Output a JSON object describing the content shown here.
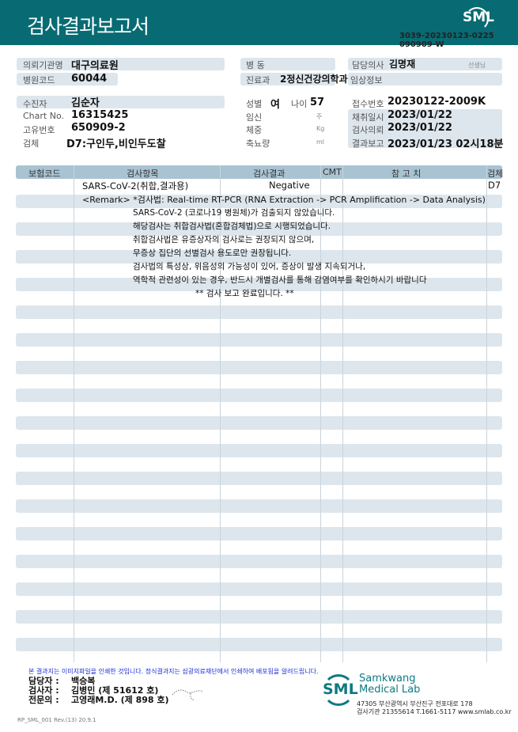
{
  "header": {
    "title": "검사결과보고서",
    "logo": "SML",
    "doc_number_line1": "3039-20230123-0225",
    "doc_number_line2": "090909-W"
  },
  "info": {
    "institution_label": "의뢰기관명",
    "institution": "대구의료원",
    "ward_label": "병 동",
    "ward": "",
    "doctor_label": "담당의사",
    "doctor": "김명재",
    "doctor_suffix": "선생님",
    "hospital_code_label": "병원코드",
    "hospital_code": "60044",
    "department_label": "진료과",
    "department": "2정신건강의학과",
    "clinical_info_label": "임상정보",
    "patient_label": "수진자",
    "patient": "김순자",
    "chart_label": "Chart No.",
    "chart": "16315425",
    "id_label": "고유번호",
    "id": "650909-2",
    "specimen_label": "검체",
    "specimen": "D7:구인두,비인두도찰",
    "sex_label": "성별",
    "sex": "여",
    "age_label": "나이",
    "age": "57",
    "pregnancy_label": "임신",
    "pregnancy_unit": "주",
    "weight_label": "체중",
    "weight_unit": "Kg",
    "urine_label": "축뇨량",
    "urine_unit": "ml",
    "receipt_label": "접수번호",
    "receipt": "20230122-2009K",
    "collected_label": "채취일시",
    "collected": "2023/01/22",
    "requested_label": "검사의뢰",
    "requested": "2023/01/22",
    "reported_label": "결과보고",
    "reported": "2023/01/23 02시18분"
  },
  "table": {
    "headers": [
      "보험코드",
      "검사항목",
      "검사결과",
      "CMT",
      "참 고 치",
      "검체"
    ],
    "row": {
      "item": "SARS-CoV-2(취합,결과용)",
      "result": "Negative",
      "specimen": "D7"
    },
    "remark": "<Remark> *검사법: Real-time RT-PCR (RNA Extraction -> PCR Amplification -> Data Analysis)",
    "notes": [
      "SARS-CoV-2 (코로나19 병원체)가 검출되지 않았습니다.",
      "해당검사는 취합검사법(혼합검체법)으로 시행되었습니다.",
      "취합검사법은 유증상자의 검사로는 권장되지 않으며,",
      "무증상 집단의 선별검사 용도로만 권장됩니다.",
      "검사법의 특성상, 위음성의 가능성이 있어, 증상이 발생 지속되거나,",
      "역학적 관련성이 있는 경우, 반드시 개별검사를 통해 감염여부를 확인하시기 바랍니다"
    ],
    "end": "** 검사 보고 완료입니다. **"
  },
  "footer": {
    "notice": "본 결과지는 이미지파일을 인쇄한 것입니다. 정식결과지는 삼광의료재단에서 인쇄하여 배포됨을 알려드립니다.",
    "manager_label": "담당자 :",
    "manager": "백승복",
    "tester_label": "검사자 :",
    "tester": "김병민 (제 51612 호)",
    "specialist_label": "전문의 :",
    "specialist": "고영래M.D. (제 898 호)",
    "lab_logo": "SML",
    "lab_name1": "Samkwang",
    "lab_name2": "Medical Lab",
    "address": "47305 부산광역시 부산진구 전포대로 178",
    "contact": "검사기관 21355614 T.1661-5117 www.smlab.co.kr",
    "form_code": "RP_SML_001 Rev.(13) 20.9.1"
  },
  "colors": {
    "header": "#086b73",
    "stripe": "#dde6ed",
    "notice": "#1a2fd8"
  }
}
